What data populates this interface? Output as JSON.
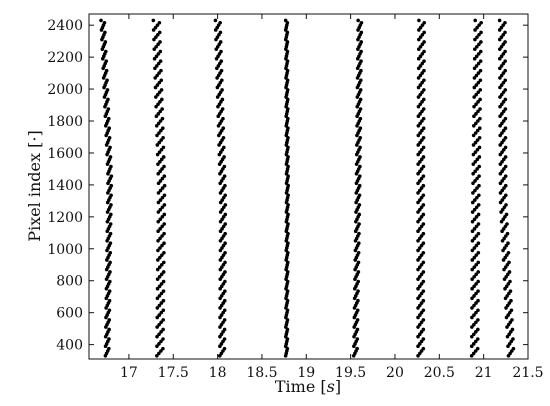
{
  "chart_data": {
    "type": "scatter",
    "title": "",
    "xlabel_text": "Time [",
    "xlabel_unit": "s",
    "xlabel_close": "]",
    "ylabel": "Pixel index [·]",
    "xlim": [
      16.55,
      21.5
    ],
    "ylim": [
      310,
      2470
    ],
    "xticks": [
      {
        "value": 17,
        "label": "17"
      },
      {
        "value": 17.5,
        "label": "17.5"
      },
      {
        "value": 18,
        "label": "18"
      },
      {
        "value": 18.5,
        "label": "18.5"
      },
      {
        "value": 19,
        "label": "19"
      },
      {
        "value": 19.5,
        "label": "19.5"
      },
      {
        "value": 20,
        "label": "20"
      },
      {
        "value": 20.5,
        "label": "20.5"
      },
      {
        "value": 21,
        "label": "21"
      },
      {
        "value": 21.5,
        "label": "21.5"
      }
    ],
    "yticks": [
      {
        "value": 400,
        "label": "400"
      },
      {
        "value": 600,
        "label": "600"
      },
      {
        "value": 800,
        "label": "800"
      },
      {
        "value": 1000,
        "label": "1000"
      },
      {
        "value": 1200,
        "label": "1200"
      },
      {
        "value": 1400,
        "label": "1400"
      },
      {
        "value": 1600,
        "label": "1600"
      },
      {
        "value": 1800,
        "label": "1800"
      },
      {
        "value": 2000,
        "label": "2000"
      },
      {
        "value": 2200,
        "label": "2200"
      },
      {
        "value": 2400,
        "label": "2400"
      }
    ],
    "grid": false,
    "legend": "none",
    "marker_color": "#000000",
    "bands": [
      {
        "t_bottom": 16.76,
        "t_mid": 16.79,
        "t_top": 16.71,
        "y_bottom": 330,
        "y_mid": 1450,
        "y_top": 2440,
        "spread": 0.05
      },
      {
        "t_bottom": 17.36,
        "t_mid": 17.38,
        "t_top": 17.32,
        "y_bottom": 330,
        "y_mid": 1400,
        "y_top": 2440,
        "spread": 0.09
      },
      {
        "t_bottom": 18.06,
        "t_mid": 18.07,
        "t_top": 18.01,
        "y_bottom": 330,
        "y_mid": 1300,
        "y_top": 2440,
        "spread": 0.07
      },
      {
        "t_bottom": 18.78,
        "t_mid": 18.79,
        "t_top": 18.78,
        "y_bottom": 330,
        "y_mid": 1400,
        "y_top": 2440,
        "spread": 0.025
      },
      {
        "t_bottom": 19.56,
        "t_mid": 19.59,
        "t_top": 19.61,
        "y_bottom": 330,
        "y_mid": 1400,
        "y_top": 2440,
        "spread": 0.05
      },
      {
        "t_bottom": 20.3,
        "t_mid": 20.3,
        "t_top": 20.31,
        "y_bottom": 330,
        "y_mid": 1400,
        "y_top": 2440,
        "spread": 0.08
      },
      {
        "t_bottom": 20.91,
        "t_mid": 20.92,
        "t_top": 20.95,
        "y_bottom": 330,
        "y_mid": 1200,
        "y_top": 2440,
        "spread": 0.09
      },
      {
        "t_bottom": 21.32,
        "t_mid": 21.23,
        "t_top": 21.22,
        "y_bottom": 330,
        "y_mid": 1300,
        "y_top": 2440,
        "spread": 0.08
      }
    ]
  }
}
